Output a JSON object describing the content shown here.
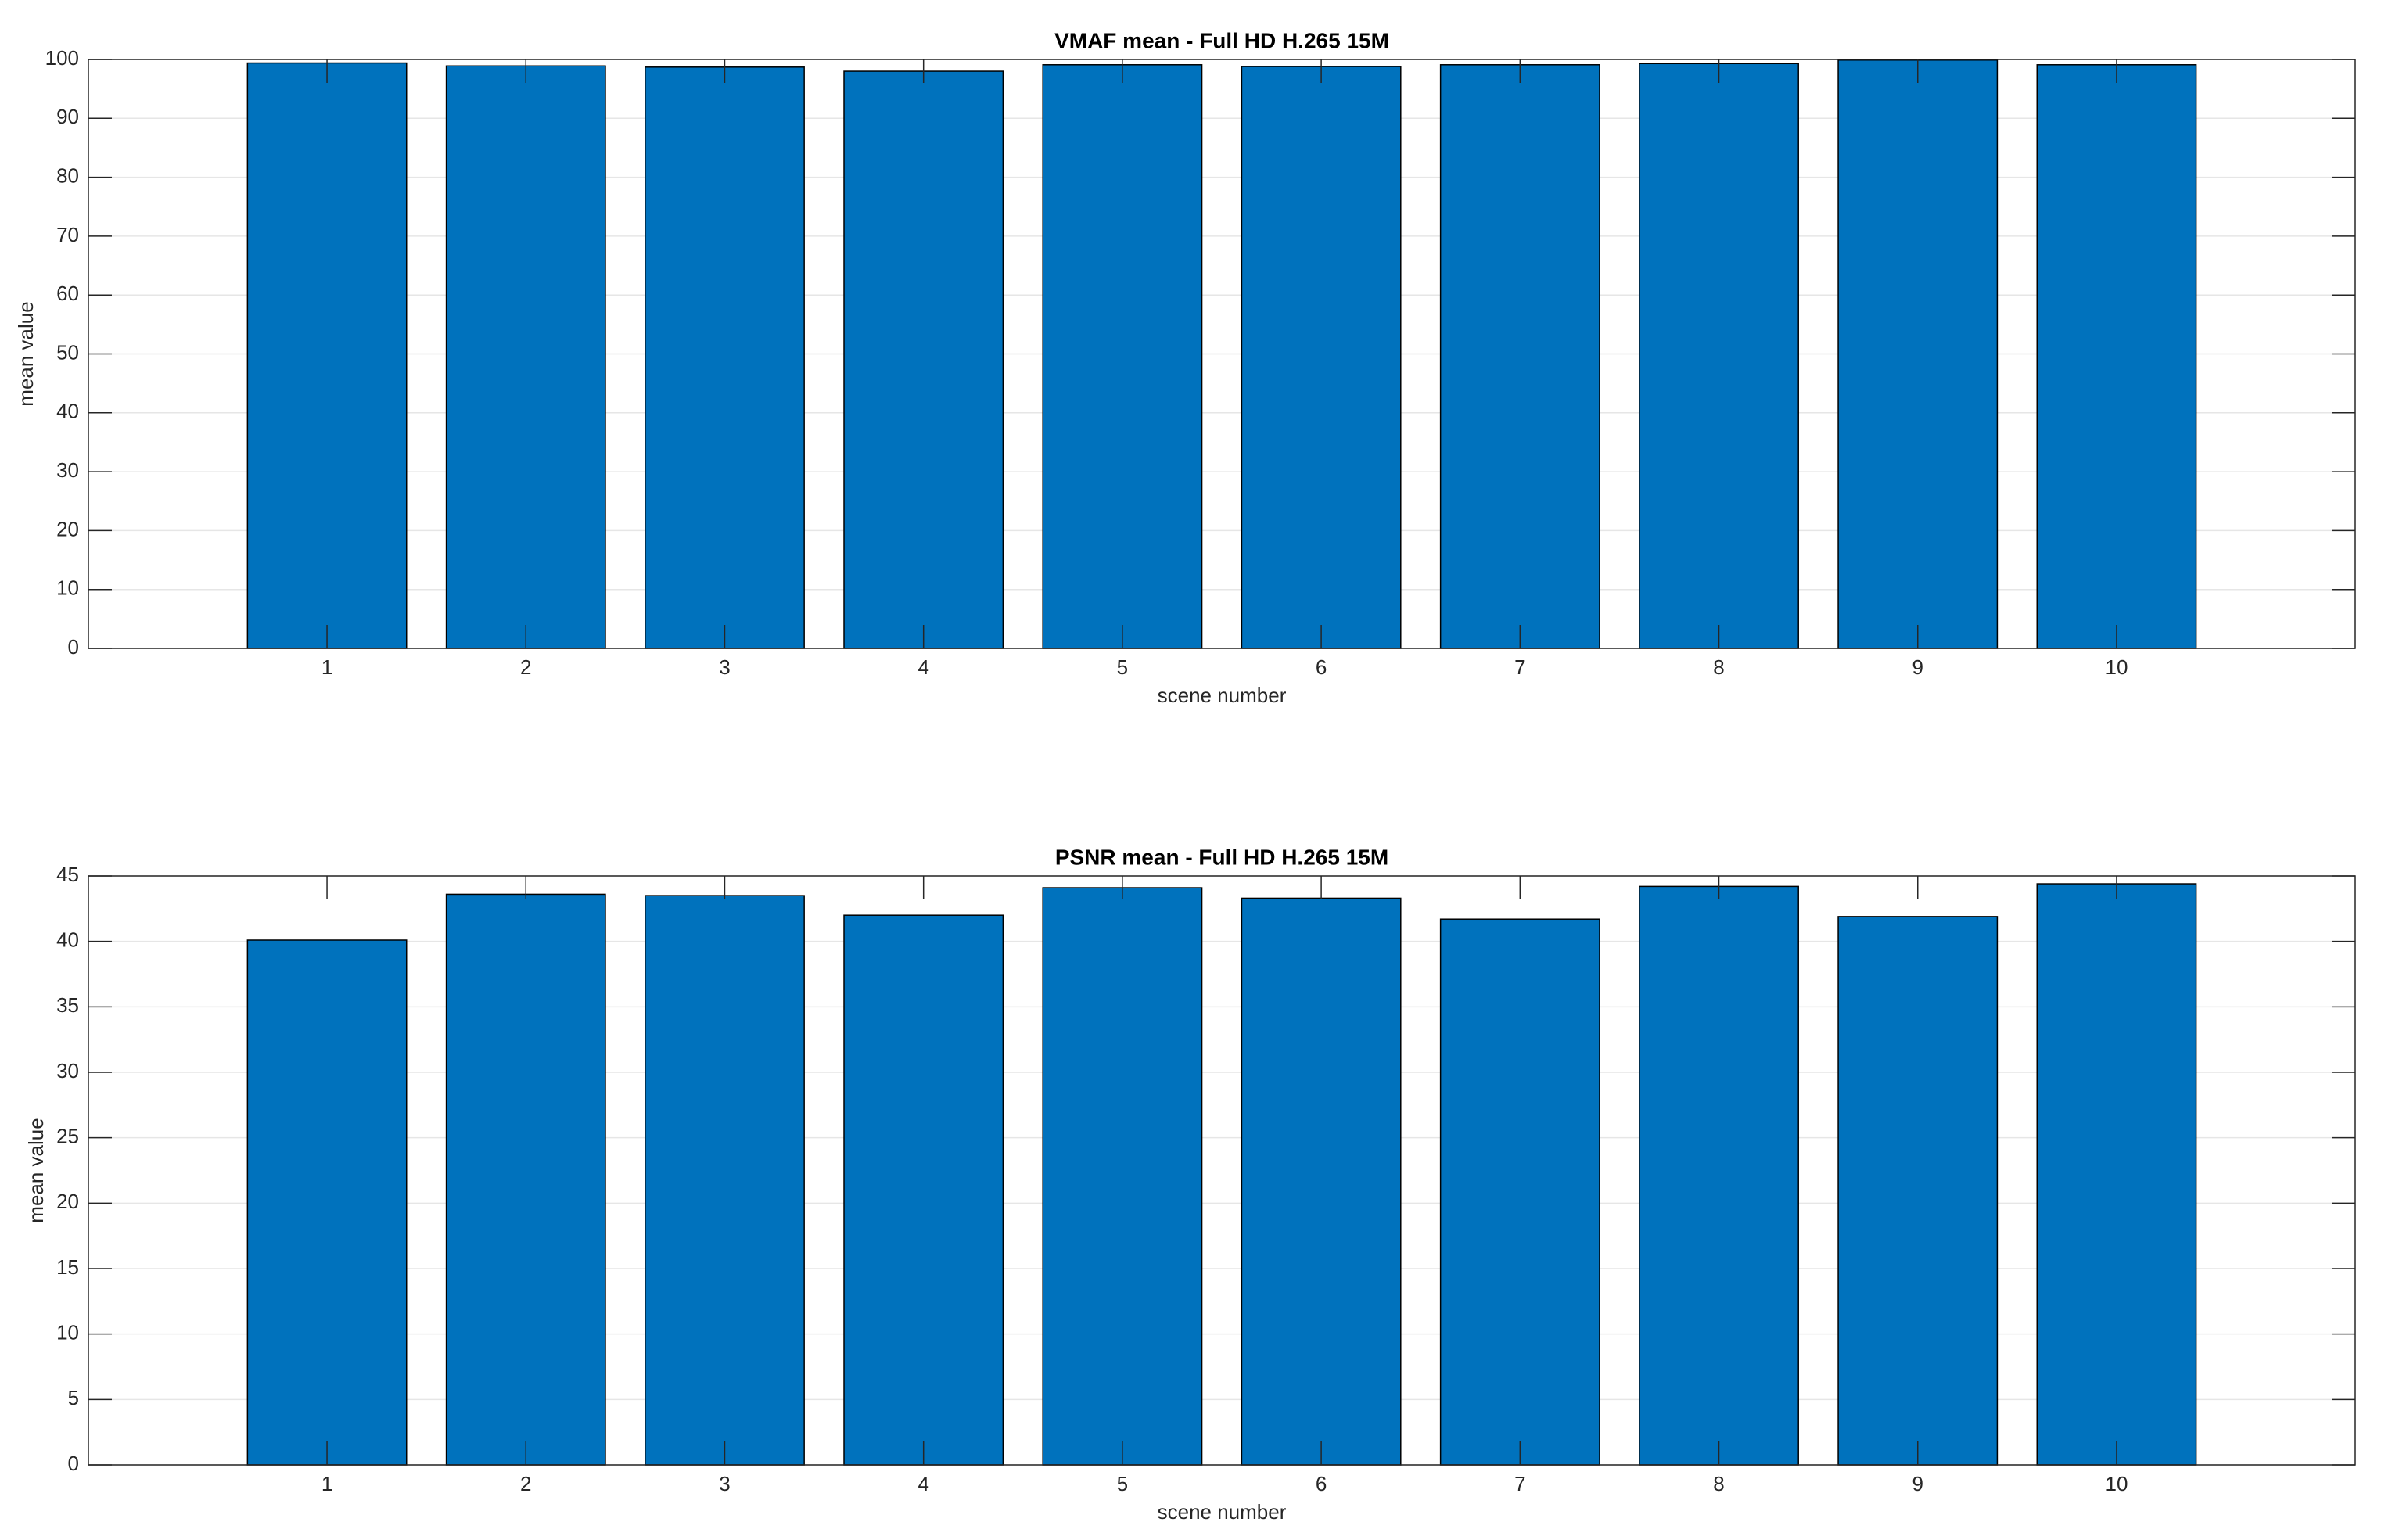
{
  "chart_data": [
    {
      "type": "bar",
      "title": "VMAF mean - Full HD H.265 15M",
      "x_label": "scene number",
      "y_label": "mean value",
      "x": [
        1,
        2,
        3,
        4,
        5,
        6,
        7,
        8,
        9,
        10
      ],
      "values": [
        99.4,
        98.9,
        98.7,
        98.0,
        99.1,
        98.8,
        99.1,
        99.3,
        99.9,
        99.1
      ],
      "color": "#0072bd",
      "xlim": [
        -0.2,
        11.2
      ],
      "xticks": [
        1,
        2,
        3,
        4,
        5,
        6,
        7,
        8,
        9,
        10
      ],
      "ylim": [
        0,
        100
      ],
      "yticks": [
        0,
        10,
        20,
        30,
        40,
        50,
        60,
        70,
        80,
        90,
        100
      ],
      "grid": true
    },
    {
      "type": "bar",
      "title": "PSNR mean - Full HD H.265 15M",
      "x_label": "scene number",
      "y_label": "mean value",
      "x": [
        1,
        2,
        3,
        4,
        5,
        6,
        7,
        8,
        9,
        10
      ],
      "values": [
        40.1,
        43.6,
        43.5,
        42.0,
        44.1,
        43.3,
        41.7,
        44.2,
        41.9,
        44.4
      ],
      "color": "#0072bd",
      "xlim": [
        -0.2,
        11.2
      ],
      "xticks": [
        1,
        2,
        3,
        4,
        5,
        6,
        7,
        8,
        9,
        10
      ],
      "ylim": [
        0,
        45
      ],
      "yticks": [
        0,
        5,
        10,
        15,
        20,
        25,
        30,
        35,
        40,
        45
      ],
      "grid": true
    }
  ]
}
